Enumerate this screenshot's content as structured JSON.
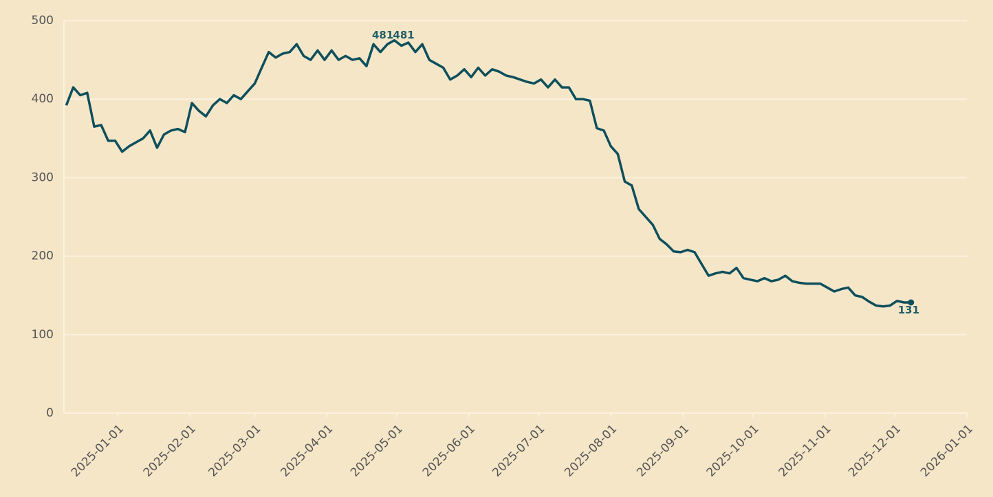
{
  "chart_data": {
    "type": "line",
    "x": [
      "2024-12-10",
      "2024-12-13",
      "2024-12-16",
      "2024-12-19",
      "2024-12-22",
      "2024-12-25",
      "2024-12-28",
      "2024-12-31",
      "2025-01-03",
      "2025-01-06",
      "2025-01-09",
      "2025-01-12",
      "2025-01-15",
      "2025-01-18",
      "2025-01-21",
      "2025-01-24",
      "2025-01-27",
      "2025-01-30",
      "2025-02-02",
      "2025-02-05",
      "2025-02-08",
      "2025-02-11",
      "2025-02-14",
      "2025-02-17",
      "2025-02-20",
      "2025-02-23",
      "2025-02-26",
      "2025-03-01",
      "2025-03-04",
      "2025-03-07",
      "2025-03-10",
      "2025-03-13",
      "2025-03-16",
      "2025-03-19",
      "2025-03-22",
      "2025-03-25",
      "2025-03-28",
      "2025-03-31",
      "2025-04-03",
      "2025-04-06",
      "2025-04-09",
      "2025-04-12",
      "2025-04-15",
      "2025-04-18",
      "2025-04-21",
      "2025-04-24",
      "2025-04-27",
      "2025-04-30",
      "2025-05-03",
      "2025-05-06",
      "2025-05-09",
      "2025-05-12",
      "2025-05-15",
      "2025-05-18",
      "2025-05-21",
      "2025-05-24",
      "2025-05-27",
      "2025-05-30",
      "2025-06-02",
      "2025-06-05",
      "2025-06-08",
      "2025-06-11",
      "2025-06-14",
      "2025-06-17",
      "2025-06-20",
      "2025-06-23",
      "2025-06-26",
      "2025-06-29",
      "2025-07-02",
      "2025-07-05",
      "2025-07-08",
      "2025-07-11",
      "2025-07-14",
      "2025-07-17",
      "2025-07-20",
      "2025-07-23",
      "2025-07-26",
      "2025-07-29",
      "2025-08-01",
      "2025-08-04",
      "2025-08-07",
      "2025-08-10",
      "2025-08-13",
      "2025-08-16",
      "2025-08-19",
      "2025-08-22",
      "2025-08-25",
      "2025-08-28",
      "2025-08-31",
      "2025-09-03",
      "2025-09-06",
      "2025-09-09",
      "2025-09-12",
      "2025-09-15",
      "2025-09-18",
      "2025-09-21",
      "2025-09-24",
      "2025-09-27",
      "2025-09-30",
      "2025-10-03",
      "2025-10-06",
      "2025-10-09",
      "2025-10-12",
      "2025-10-15",
      "2025-10-18",
      "2025-10-21",
      "2025-10-24",
      "2025-10-27",
      "2025-10-30",
      "2025-11-02",
      "2025-11-05",
      "2025-11-08",
      "2025-11-11",
      "2025-11-14",
      "2025-11-17",
      "2025-11-20",
      "2025-11-23",
      "2025-11-26",
      "2025-11-29",
      "2025-12-02",
      "2025-12-05",
      "2025-12-08"
    ],
    "values": [
      392,
      415,
      405,
      408,
      365,
      367,
      347,
      347,
      333,
      340,
      345,
      350,
      360,
      338,
      355,
      360,
      362,
      358,
      395,
      385,
      378,
      392,
      400,
      395,
      405,
      400,
      410,
      420,
      440,
      460,
      453,
      458,
      460,
      470,
      455,
      450,
      462,
      450,
      462,
      450,
      455,
      450,
      452,
      442,
      470,
      460,
      470,
      475,
      468,
      472,
      460,
      470,
      450,
      445,
      440,
      425,
      430,
      438,
      428,
      440,
      430,
      438,
      435,
      430,
      428,
      425,
      422,
      420,
      425,
      415,
      425,
      415,
      415,
      400,
      400,
      398,
      363,
      360,
      340,
      330,
      295,
      290,
      260,
      250,
      240,
      222,
      215,
      206,
      205,
      208,
      205,
      190,
      175,
      178,
      180,
      178,
      185,
      172,
      170,
      168,
      172,
      168,
      170,
      175,
      168,
      166,
      165,
      165,
      165,
      160,
      155,
      158,
      160,
      150,
      148,
      142,
      137,
      136,
      137,
      143,
      141,
      141
    ],
    "color": "#0d4f5c",
    "annotations": [
      {
        "text": "481",
        "x": "2025-04-25",
        "y": 481
      },
      {
        "text": "481",
        "x": "2025-05-04",
        "y": 481
      },
      {
        "text": "131",
        "x": "2025-12-07",
        "y": 131
      }
    ],
    "xlim": [
      "2024-12-09",
      "2026-01-01"
    ],
    "xticks": [
      "2025-01-01",
      "2025-02-01",
      "2025-03-01",
      "2025-04-01",
      "2025-05-01",
      "2025-06-01",
      "2025-07-01",
      "2025-08-01",
      "2025-09-01",
      "2025-10-01",
      "2025-11-01",
      "2025-12-01",
      "2026-01-01"
    ],
    "ylim": [
      0,
      500
    ],
    "yticks": [
      0,
      100,
      200,
      300,
      400,
      500
    ],
    "grid": true
  }
}
